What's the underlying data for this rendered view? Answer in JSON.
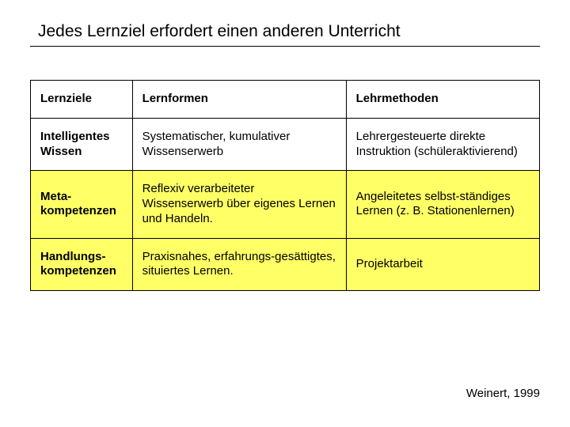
{
  "title": "Jedes Lernziel erfordert einen anderen Unterricht",
  "citation": "Weinert, 1999",
  "table": {
    "columns": [
      "Lernziele",
      "Lernformen",
      "Lehrmethoden"
    ],
    "rows": [
      {
        "highlight": false,
        "cells": [
          "Intelligentes Wissen",
          "Systematischer, kumulativer Wissenserwerb",
          "Lehrergesteuerte direkte Instruktion (schüleraktivierend)"
        ]
      },
      {
        "highlight": true,
        "cells": [
          "Meta-kompetenzen",
          "Reflexiv verarbeiteter Wissenserwerb über eigenes Lernen und Handeln.",
          "Angeleitetes selbst-ständiges Lernen (z. B. Stationenlernen)"
        ]
      },
      {
        "highlight": true,
        "cells": [
          "Handlungs-kompetenzen",
          "Praxisnahes, erfahrungs-gesättigtes, situiertes Lernen.",
          "Projektarbeit"
        ]
      }
    ]
  },
  "style": {
    "background": "#ffffff",
    "text_color": "#000000",
    "border_color": "#000000",
    "highlight_color": "#ffff66",
    "title_fontsize": 21,
    "cell_fontsize": 15,
    "citation_fontsize": 15,
    "font_family": "Arial"
  }
}
